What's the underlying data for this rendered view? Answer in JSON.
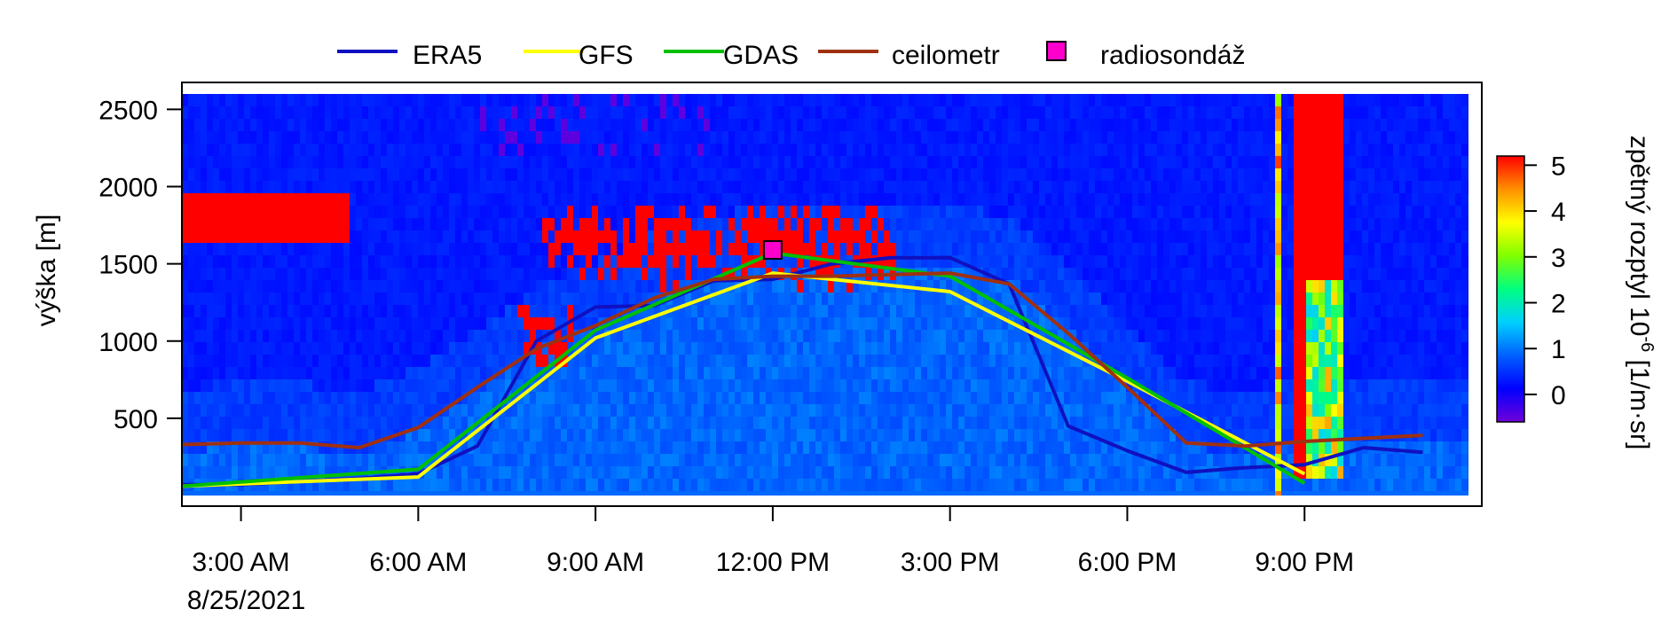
{
  "chart_data": {
    "type": "line",
    "background_type": "heatmap",
    "x_ticks": [
      {
        "hour": 3,
        "label": "3:00 AM",
        "sublabel": "8/25/2021"
      },
      {
        "hour": 6,
        "label": "6:00 AM",
        "sublabel": ""
      },
      {
        "hour": 9,
        "label": "9:00 AM",
        "sublabel": ""
      },
      {
        "hour": 12,
        "label": "12:00 PM",
        "sublabel": ""
      },
      {
        "hour": 15,
        "label": "3:00 PM",
        "sublabel": ""
      },
      {
        "hour": 18,
        "label": "6:00 PM",
        "sublabel": ""
      },
      {
        "hour": 21,
        "label": "9:00 PM",
        "sublabel": ""
      }
    ],
    "xlim": [
      2.0,
      24.0
    ],
    "ylabel": "výška [m]",
    "ylim": [
      0,
      2600
    ],
    "y_ticks": [
      500,
      1000,
      1500,
      2000,
      2500
    ],
    "legend_position": "top",
    "series": [
      {
        "name": "ERA5",
        "color": "#1010c0",
        "x": [
          2,
          3,
          4,
          5,
          6,
          7,
          8,
          9,
          10,
          11,
          12,
          13,
          14,
          15,
          16,
          17,
          18,
          19,
          20,
          21,
          22,
          23
        ],
        "y": [
          70,
          70,
          90,
          110,
          140,
          320,
          1000,
          1220,
          1230,
          1390,
          1400,
          1500,
          1540,
          1540,
          1370,
          450,
          290,
          150,
          180,
          200,
          310,
          280
        ]
      },
      {
        "name": "GFS",
        "color": "#ffff00",
        "x": [
          2,
          6,
          9,
          12,
          15,
          18,
          21
        ],
        "y": [
          60,
          120,
          1020,
          1440,
          1320,
          740,
          140
        ]
      },
      {
        "name": "GDAS",
        "color": "#00c000",
        "x": [
          2,
          6,
          9,
          12,
          15,
          18,
          21
        ],
        "y": [
          60,
          170,
          1070,
          1570,
          1420,
          760,
          80
        ]
      },
      {
        "name": "ceilometr",
        "color": "#a03010",
        "x": [
          2,
          3,
          4,
          5,
          6,
          7,
          8,
          9,
          10,
          11,
          12,
          13,
          14,
          15,
          16,
          17,
          18,
          19,
          20,
          21,
          22,
          23
        ],
        "y": [
          330,
          340,
          340,
          310,
          440,
          700,
          950,
          1100,
          1280,
          1400,
          1420,
          1420,
          1430,
          1440,
          1370,
          1050,
          700,
          340,
          320,
          350,
          370,
          390
        ]
      }
    ],
    "points": [
      {
        "name": "radiosondáž",
        "color": "#ff00cc",
        "x": 12,
        "y": 1590
      }
    ],
    "colorbar": {
      "label_main": "zpětný rozptyl 10",
      "label_exp": "-6",
      "label_unit": " [1/m·sr]",
      "ticks": [
        "0",
        "1",
        "2",
        "3",
        "4",
        "5"
      ],
      "range": [
        -0.6,
        5.2
      ],
      "stops": [
        "#7000d8",
        "#0000ff",
        "#0060ff",
        "#00d0ff",
        "#00ff80",
        "#80ff00",
        "#ffff00",
        "#ff9000",
        "#ff0000"
      ]
    }
  }
}
